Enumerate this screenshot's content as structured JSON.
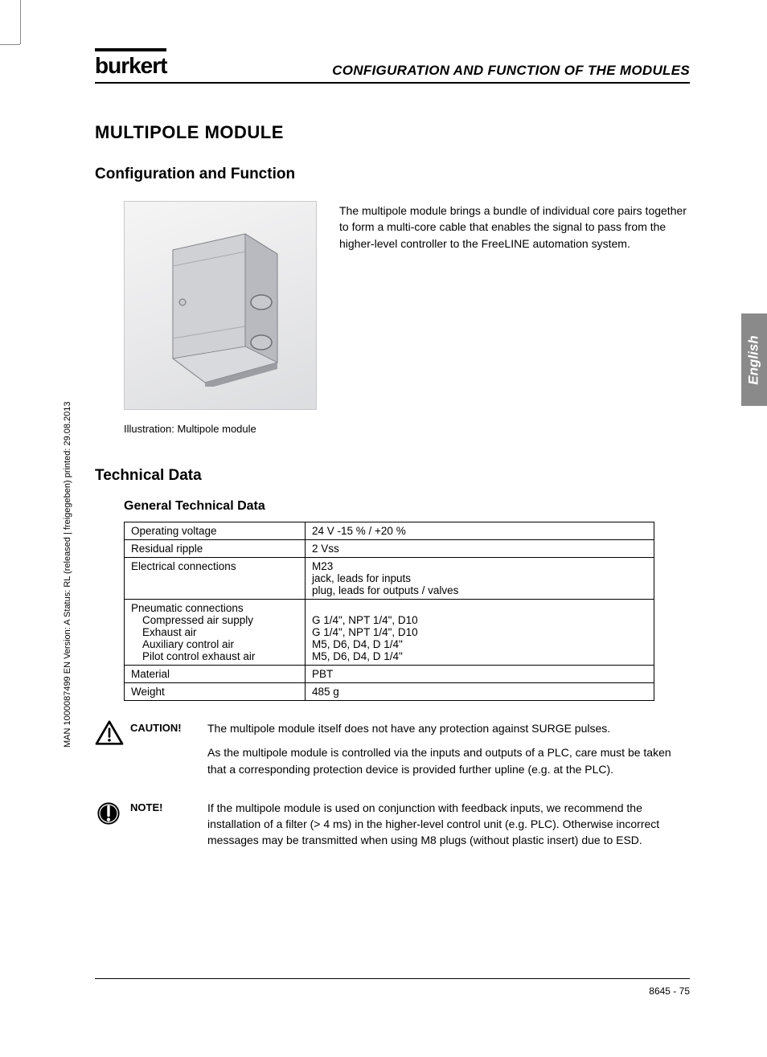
{
  "header": {
    "logo": "burkert",
    "title": "CONFIGURATION AND FUNCTION OF THE MODULES"
  },
  "side_tab": "English",
  "side_text": "MAN  1000087499  EN  Version: A   Status: RL (released | freigegeben)  printed: 29.08.2013",
  "h1": "MULTIPOLE MODULE",
  "h2_config": "Configuration and Function",
  "intro": "The multipole module brings a bundle of individual core pairs together to form a multi-core cable that enables the signal to pass from the higher-level controller to the FreeLINE automation system.",
  "caption": "Illustration: Multipole module",
  "h2_tech": "Technical Data",
  "h3_general": "General Technical Data",
  "table": {
    "rows": [
      {
        "label": "Operating voltage",
        "value": "24 V  -15 % / +20 %"
      },
      {
        "label": "Residual ripple",
        "value": "2 Vss"
      },
      {
        "label": "Electrical connections",
        "value": "M23\njack, leads for inputs\nplug, leads for outputs / valves"
      },
      {
        "label_main": "Pneumatic connections",
        "sub": [
          {
            "l": "Compressed air supply",
            "v": "G 1/4\", NPT 1/4\", D10"
          },
          {
            "l": "Exhaust air",
            "v": "G 1/4\", NPT 1/4\", D10"
          },
          {
            "l": "Auxiliary control air",
            "v": "M5, D6, D4, D 1/4\""
          },
          {
            "l": "Pilot control exhaust air",
            "v": "M5, D6, D4, D 1/4\""
          }
        ]
      },
      {
        "label": "Material",
        "value": "PBT"
      },
      {
        "label": "Weight",
        "value": "485 g"
      }
    ]
  },
  "caution": {
    "label": "CAUTION!",
    "p1": "The multipole module itself does not  have any protection against SURGE pulses.",
    "p2": "As the multipole module is controlled via the inputs and outputs of a PLC, care must be taken that a corresponding protection device is provided further upline (e.g. at the PLC)."
  },
  "note": {
    "label": "NOTE!",
    "p1": "If the multipole module is used on conjunction with feedback inputs, we recommend the installation of a filter (> 4 ms) in the higher-level control unit (e.g. PLC). Otherwise incorrect messages may be transmitted when using M8 plugs (without plastic insert) due to ESD."
  },
  "footer": "8645  -  75",
  "colors": {
    "text": "#000000",
    "tab_bg": "#8a8a8a",
    "tab_fg": "#ffffff",
    "illus_bg1": "#f5f5f5",
    "illus_bg2": "#dcdde0"
  },
  "illustration": {
    "body_fill": "#d9dadd",
    "body_stroke": "#7a7b80",
    "front_fill": "#d0d1d5",
    "side_fill": "#b9bac0",
    "knob_fill": "#c8c9cc",
    "knob_stroke": "#6f7075"
  }
}
